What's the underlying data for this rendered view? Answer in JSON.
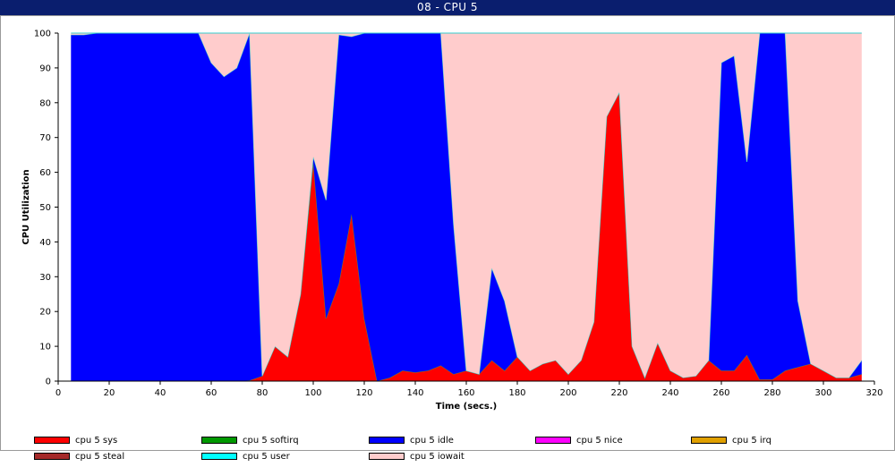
{
  "window": {
    "title": "08 - CPU 5"
  },
  "chart_data": {
    "type": "area",
    "stacked": true,
    "xlabel": "Time (secs.)",
    "ylabel": "CPU Utilization",
    "xlim": [
      0,
      320
    ],
    "ylim": [
      0,
      100
    ],
    "xticks": [
      0,
      20,
      40,
      60,
      80,
      100,
      120,
      140,
      160,
      180,
      200,
      220,
      240,
      260,
      280,
      300,
      320
    ],
    "yticks": [
      0,
      10,
      20,
      30,
      40,
      50,
      60,
      70,
      80,
      90,
      100
    ],
    "grid": false,
    "legend_position": "bottom",
    "x": [
      5,
      10,
      15,
      20,
      25,
      30,
      35,
      40,
      45,
      50,
      55,
      60,
      65,
      70,
      75,
      80,
      85,
      90,
      95,
      100,
      105,
      110,
      115,
      120,
      125,
      130,
      135,
      140,
      145,
      150,
      155,
      160,
      165,
      170,
      175,
      180,
      185,
      190,
      195,
      200,
      205,
      210,
      215,
      220,
      225,
      230,
      235,
      240,
      245,
      250,
      255,
      260,
      265,
      270,
      275,
      280,
      285,
      290,
      295,
      300,
      305,
      310,
      315
    ],
    "series": [
      {
        "name": "cpu 5 sys",
        "color": "#ff0000",
        "values": [
          0,
          0,
          0,
          0,
          0,
          0,
          0,
          0,
          0,
          0,
          0,
          0,
          0,
          0,
          0.2,
          1.5,
          10,
          7,
          25,
          63,
          18,
          28,
          48,
          18,
          0,
          1,
          3,
          2.5,
          3,
          4.5,
          2,
          3,
          2,
          6,
          3,
          7,
          3,
          5,
          6,
          2,
          6,
          17,
          76,
          83,
          10,
          1,
          11,
          3,
          1,
          1.5,
          6,
          3,
          3,
          7.5,
          0.5,
          0.5,
          3,
          4,
          5,
          3,
          1,
          1,
          2
        ]
      },
      {
        "name": "cpu 5 softirq",
        "color": "#009900",
        "values": [
          0,
          0,
          0,
          0,
          0,
          0,
          0,
          0,
          0,
          0,
          0,
          0,
          0,
          0,
          0,
          0,
          0,
          0,
          0,
          0,
          0,
          0,
          0,
          0,
          0,
          0,
          0,
          0,
          0,
          0,
          0,
          0,
          0,
          0,
          0,
          0,
          0,
          0,
          0,
          0,
          0,
          0,
          0,
          0,
          0,
          0,
          0,
          0,
          0,
          0,
          0,
          0,
          0,
          0,
          0,
          0,
          0,
          0,
          0,
          0,
          0,
          0,
          0
        ]
      },
      {
        "name": "cpu 5 idle",
        "color": "#0000ff",
        "values": [
          99.5,
          99.5,
          100,
          100,
          100,
          100,
          100,
          100,
          100,
          100,
          100,
          91.5,
          87.5,
          90,
          99.8,
          0,
          0,
          0,
          0,
          1.5,
          34,
          71.5,
          51,
          82,
          100,
          99,
          97,
          97.5,
          97,
          95.5,
          43,
          0,
          0,
          26.5,
          20,
          0,
          0,
          0,
          0,
          0,
          0,
          0,
          0,
          0,
          0,
          0,
          0,
          0,
          0,
          0,
          0,
          88.5,
          90.5,
          55.5,
          99.5,
          99.5,
          97,
          19,
          0,
          0,
          0,
          0,
          4
        ]
      },
      {
        "name": "cpu 5 nice",
        "color": "#ff00ff",
        "values": [
          0,
          0,
          0,
          0,
          0,
          0,
          0,
          0,
          0,
          0,
          0,
          0,
          0,
          0,
          0,
          0,
          0,
          0,
          0,
          0,
          0,
          0,
          0,
          0,
          0,
          0,
          0,
          0,
          0,
          0,
          0,
          0,
          0,
          0,
          0,
          0,
          0,
          0,
          0,
          0,
          0,
          0,
          0,
          0,
          0,
          0,
          0,
          0,
          0,
          0,
          0,
          0,
          0,
          0,
          0,
          0,
          0,
          0,
          0,
          0,
          0,
          0,
          0
        ]
      },
      {
        "name": "cpu 5 irq",
        "color": "#e0a000",
        "values": [
          0,
          0,
          0,
          0,
          0,
          0,
          0,
          0,
          0,
          0,
          0,
          0,
          0,
          0,
          0,
          0,
          0,
          0,
          0,
          0,
          0,
          0,
          0,
          0,
          0,
          0,
          0,
          0,
          0,
          0,
          0,
          0,
          0,
          0,
          0,
          0,
          0,
          0,
          0,
          0,
          0,
          0,
          0,
          0,
          0,
          0,
          0,
          0,
          0,
          0,
          0,
          0,
          0,
          0,
          0,
          0,
          0,
          0,
          0,
          0,
          0,
          0,
          0
        ]
      },
      {
        "name": "cpu 5 steal",
        "color": "#a52a2a",
        "values": [
          0,
          0,
          0,
          0,
          0,
          0,
          0,
          0,
          0,
          0,
          0,
          0,
          0,
          0,
          0,
          0,
          0,
          0,
          0,
          0,
          0,
          0,
          0,
          0,
          0,
          0,
          0,
          0,
          0,
          0,
          0,
          0,
          0,
          0,
          0,
          0,
          0,
          0,
          0,
          0,
          0,
          0,
          0,
          0,
          0,
          0,
          0,
          0,
          0,
          0,
          0,
          0,
          0,
          0,
          0,
          0,
          0,
          0,
          0,
          0,
          0,
          0,
          0
        ]
      },
      {
        "name": "cpu 5 user",
        "color": "#00ffff",
        "values": [
          0,
          0,
          0,
          0,
          0,
          0,
          0,
          0,
          0,
          0,
          0,
          0,
          0,
          0,
          0,
          0,
          0,
          0,
          0,
          0,
          0,
          0,
          0,
          0,
          0,
          0,
          0,
          0,
          0,
          0,
          0,
          0,
          0,
          0,
          0,
          0,
          0,
          0,
          0,
          0,
          0,
          0,
          0,
          0,
          0,
          0,
          0,
          0,
          0,
          0,
          0,
          0,
          0,
          0,
          0,
          0,
          0,
          0,
          0,
          0,
          0,
          0,
          0
        ]
      },
      {
        "name": "cpu 5 iowait",
        "color": "#ffcccc",
        "values": [
          0.5,
          0.5,
          0,
          0,
          0,
          0,
          0,
          0,
          0,
          0,
          0,
          8.5,
          12.5,
          10,
          0,
          98.5,
          90,
          93,
          75,
          35.5,
          48,
          0.5,
          1,
          0,
          0,
          0,
          0,
          0,
          0,
          0,
          55,
          97,
          98,
          67.5,
          77,
          93,
          97,
          95,
          94,
          98,
          94,
          83,
          24,
          17,
          90,
          99,
          89,
          97,
          99,
          98.5,
          94,
          8.5,
          6.5,
          37,
          0,
          0,
          0,
          77,
          95,
          97,
          99,
          99,
          94
        ]
      }
    ]
  },
  "legend": {
    "items": [
      {
        "label": "cpu 5 sys",
        "color": "#ff0000"
      },
      {
        "label": "cpu 5 softirq",
        "color": "#009900"
      },
      {
        "label": "cpu 5 idle",
        "color": "#0000ff"
      },
      {
        "label": "cpu 5 nice",
        "color": "#ff00ff"
      },
      {
        "label": "cpu 5 irq",
        "color": "#e0a000"
      },
      {
        "label": "cpu 5 steal",
        "color": "#a52a2a"
      },
      {
        "label": "cpu 5 user",
        "color": "#00ffff"
      },
      {
        "label": "cpu 5 iowait",
        "color": "#ffcccc"
      }
    ]
  }
}
